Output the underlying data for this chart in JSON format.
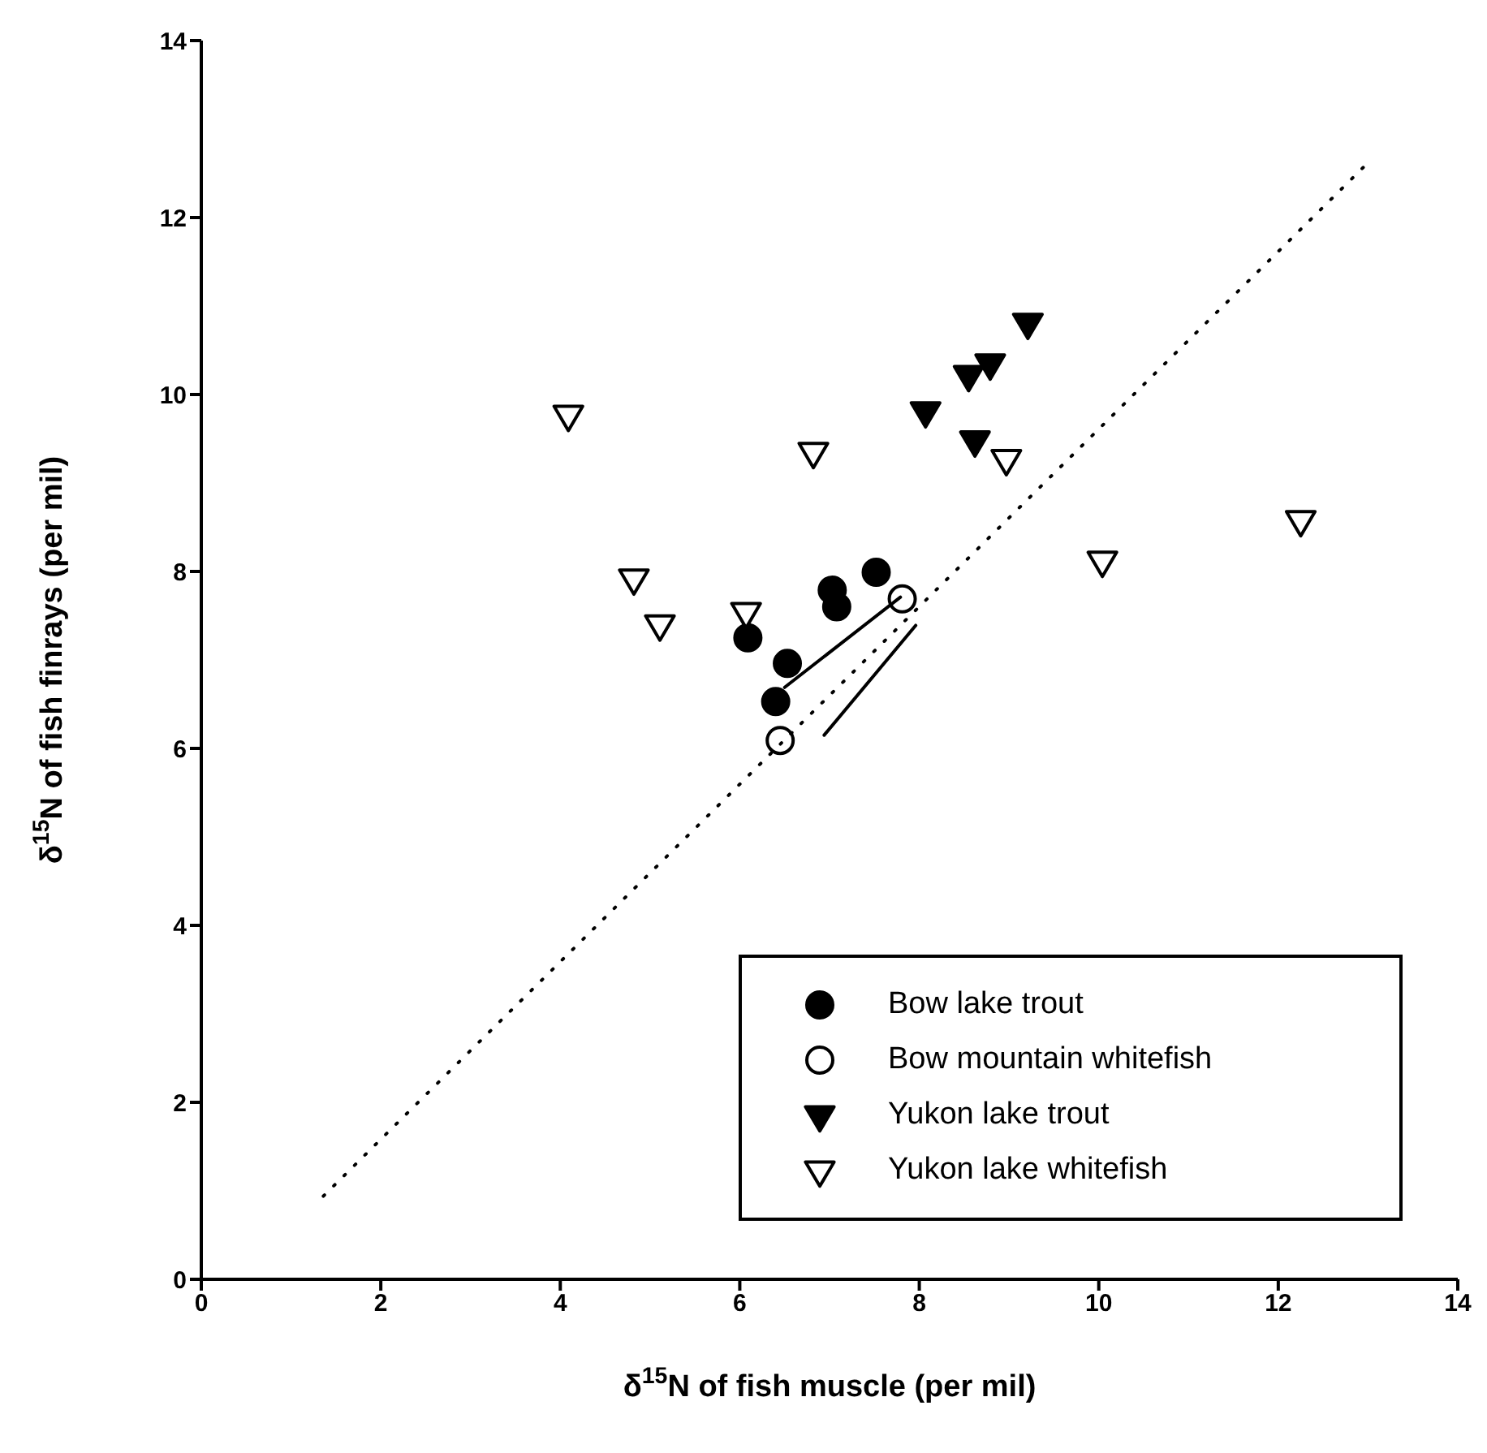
{
  "chart_data": {
    "type": "scatter",
    "xlabel": "δ$^{15}$N of fish muscle (per mil)",
    "ylabel": "δ$^{15}$N of fish finrays (per mil)",
    "xlim": [
      0,
      14
    ],
    "ylim": [
      0,
      14
    ],
    "xticks": [
      0,
      2,
      4,
      6,
      8,
      10,
      12,
      14
    ],
    "yticks": [
      0,
      2,
      4,
      6,
      8,
      10,
      12,
      14
    ],
    "grid": false,
    "legend": "bottom right",
    "series": [
      {
        "name": "Bow lake trout",
        "color": "#000000",
        "marker": "circle",
        "x": [
          6.09,
          6.53,
          6.4,
          7.03,
          7.08,
          7.52
        ],
        "values": [
          7.25,
          6.96,
          6.53,
          7.79,
          7.6,
          7.99
        ]
      },
      {
        "name": "Bow mountain whitefish",
        "color": "#ffffff",
        "marker": "circle",
        "x": [
          7.81,
          6.45
        ],
        "values": [
          7.69,
          6.09
        ]
      },
      {
        "name": "Yukon lake trout",
        "color": "#000000",
        "marker": "triangle",
        "x": [
          8.07,
          8.62,
          8.55,
          8.79,
          9.21
        ],
        "values": [
          9.81,
          9.48,
          10.22,
          10.35,
          10.81
        ]
      },
      {
        "name": "Yukon lake whitefish",
        "color": "#ffffff",
        "marker": "triangle",
        "x": [
          4.09,
          6.82,
          8.97,
          4.82,
          5.11,
          6.07,
          10.04,
          12.25
        ],
        "values": [
          9.77,
          9.35,
          9.27,
          7.92,
          7.4,
          7.54,
          8.12,
          8.58
        ]
      },
      {
        "type": "line",
        "color": "#000000",
        "line_style": "dotted",
        "marker": "none",
        "x": [
          1.36,
          13.01
        ],
        "values": [
          0.94,
          12.63
        ]
      },
      {
        "type": "line",
        "color": "#000000",
        "line_style": "solid",
        "marker": "none",
        "x": [
          6.5,
          7.79
        ],
        "values": [
          6.69,
          7.71
        ]
      },
      {
        "type": "line",
        "color": "#000000",
        "line_style": "solid",
        "marker": "none",
        "x": [
          6.94,
          7.96
        ],
        "values": [
          6.15,
          7.39
        ]
      }
    ]
  }
}
